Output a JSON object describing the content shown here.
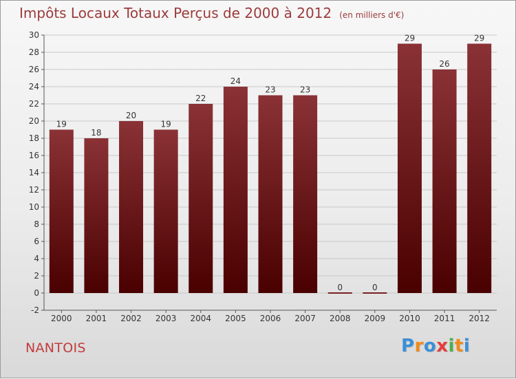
{
  "header": {
    "title": "Impôts Locaux Totaux Perçus de 2000 à 2012",
    "unit": "(en milliers d'€)"
  },
  "place": "NANTOIS",
  "brand": {
    "name": "Proxiti",
    "letters": [
      "P",
      "r",
      "o",
      "x",
      "i",
      "t",
      "i"
    ],
    "colors": [
      "#3b8fd6",
      "#f08a1c",
      "#3b8fd6",
      "#e53b3b",
      "#4caf50",
      "#f08a1c",
      "#3b8fd6"
    ]
  },
  "colors": {
    "bar_top": "#8a3236",
    "bar_bottom": "#4a0000",
    "grid": "#c8c8c8"
  },
  "chart_data": {
    "type": "bar",
    "title": "Impôts Locaux Totaux Perçus de 2000 à 2012",
    "xlabel": "",
    "ylabel": "",
    "ylim": [
      -2,
      30
    ],
    "yticks": [
      -2,
      0,
      2,
      4,
      6,
      8,
      10,
      12,
      14,
      16,
      18,
      20,
      22,
      24,
      26,
      28,
      30
    ],
    "categories": [
      "2000",
      "2001",
      "2002",
      "2003",
      "2004",
      "2005",
      "2006",
      "2007",
      "2008",
      "2009",
      "2010",
      "2011",
      "2012"
    ],
    "values": [
      19,
      18,
      20,
      19,
      22,
      24,
      23,
      23,
      0,
      0,
      29,
      26,
      29
    ]
  }
}
